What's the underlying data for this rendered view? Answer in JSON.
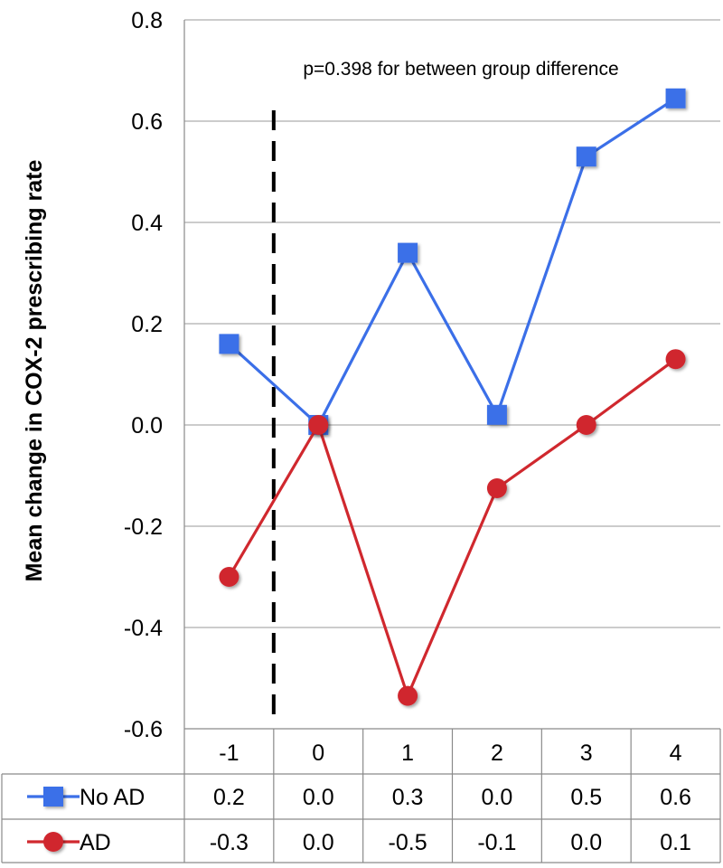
{
  "chart_data": {
    "type": "line",
    "title": "",
    "xlabel": "",
    "ylabel": "Mean change in COX-2 prescribing rate",
    "annotation": "p=0.398 for between group difference",
    "categories": [
      "-1",
      "0",
      "1",
      "2",
      "3",
      "4"
    ],
    "ylim": [
      -0.6,
      0.8
    ],
    "yticks": [
      -0.6,
      -0.4,
      -0.2,
      0.0,
      0.2,
      0.4,
      0.6,
      0.8
    ],
    "ytick_labels": [
      "-0.6",
      "-0.4",
      "-0.2",
      "0.0",
      "0.2",
      "0.4",
      "0.6",
      "0.8"
    ],
    "grid": "horizontal",
    "vline_at": 0.5,
    "series": [
      {
        "name": "No AD",
        "color": "#3b6fe8",
        "marker": "square",
        "values": [
          0.16,
          0.0,
          0.34,
          0.02,
          0.53,
          0.645
        ],
        "table_values": [
          "0.2",
          "0.0",
          "0.3",
          "0.0",
          "0.5",
          "0.6"
        ]
      },
      {
        "name": "AD",
        "color": "#d0282e",
        "marker": "circle",
        "values": [
          -0.3,
          0.0,
          -0.535,
          -0.125,
          0.0,
          0.13
        ],
        "table_values": [
          "-0.3",
          "0.0",
          "-0.5",
          "-0.1",
          "0.0",
          "0.1"
        ]
      }
    ]
  }
}
